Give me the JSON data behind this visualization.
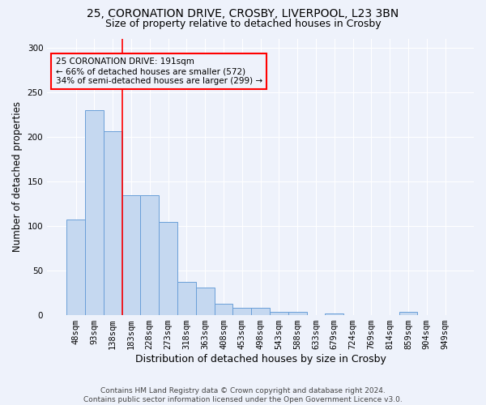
{
  "title_line1": "25, CORONATION DRIVE, CROSBY, LIVERPOOL, L23 3BN",
  "title_line2": "Size of property relative to detached houses in Crosby",
  "xlabel": "Distribution of detached houses by size in Crosby",
  "ylabel": "Number of detached properties",
  "footer": "Contains HM Land Registry data © Crown copyright and database right 2024.\nContains public sector information licensed under the Open Government Licence v3.0.",
  "bar_labels": [
    "48sqm",
    "93sqm",
    "138sqm",
    "183sqm",
    "228sqm",
    "273sqm",
    "318sqm",
    "363sqm",
    "408sqm",
    "453sqm",
    "498sqm",
    "543sqm",
    "588sqm",
    "633sqm",
    "679sqm",
    "724sqm",
    "769sqm",
    "814sqm",
    "859sqm",
    "904sqm",
    "949sqm"
  ],
  "bar_values": [
    107,
    230,
    206,
    134,
    134,
    104,
    37,
    31,
    13,
    8,
    8,
    4,
    4,
    0,
    2,
    0,
    0,
    0,
    4,
    0,
    0
  ],
  "bar_color": "#c5d8f0",
  "bar_edgecolor": "#6a9fd8",
  "annotation_text": "25 CORONATION DRIVE: 191sqm\n← 66% of detached houses are smaller (572)\n34% of semi-detached houses are larger (299) →",
  "vline_x": 2.5,
  "vline_color": "red",
  "ylim": [
    0,
    310
  ],
  "yticks": [
    0,
    50,
    100,
    150,
    200,
    250,
    300
  ],
  "background_color": "#eef2fb",
  "grid_color": "#ffffff",
  "title_fontsize": 10,
  "subtitle_fontsize": 9,
  "ylabel_fontsize": 8.5,
  "xlabel_fontsize": 9,
  "tick_fontsize": 7.5,
  "footer_fontsize": 6.5
}
